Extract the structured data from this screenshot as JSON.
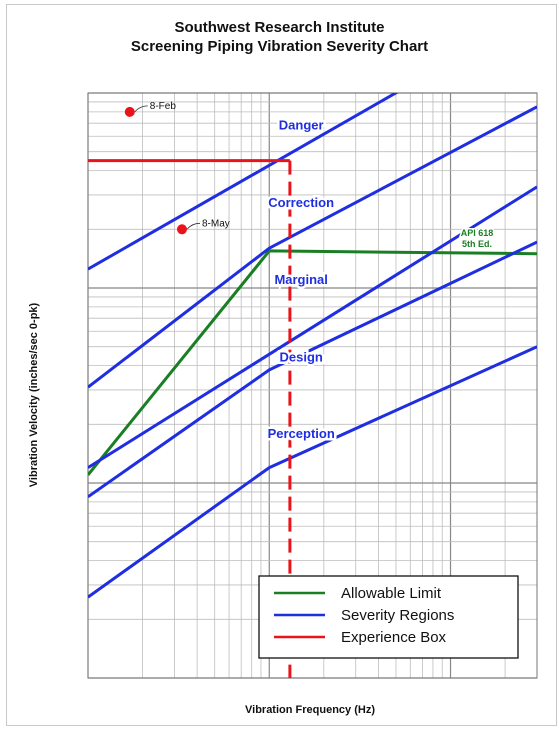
{
  "chart_data": {
    "type": "line",
    "title": "Southwest Research Institute",
    "subtitle": "Screening Piping Vibration Severity Chart",
    "xlabel": "Vibration Frequency (Hz)",
    "ylabel": "Vibration Velocity (inches/sec  0-pk)",
    "xscale": "log",
    "yscale": "log",
    "xlim": [
      1,
      300
    ],
    "ylim": [
      0.01,
      10
    ],
    "grid": true,
    "series": [
      {
        "name": "Allowable Limit",
        "color": "#1a7f24",
        "x": [
          1,
          10,
          300
        ],
        "y": [
          0.11,
          1.55,
          1.5
        ]
      },
      {
        "name": "Severity Regions",
        "color": "#1f2ee0",
        "x": [
          1,
          300
        ],
        "y": [
          1.25,
          26
        ]
      },
      {
        "name": "Severity Regions",
        "color": "#1f2ee0",
        "x": [
          1,
          10,
          300
        ],
        "y": [
          0.31,
          1.6,
          8.5
        ]
      },
      {
        "name": "Severity Regions",
        "color": "#1f2ee0",
        "x": [
          1,
          300
        ],
        "y": [
          0.12,
          3.3
        ]
      },
      {
        "name": "Severity Regions",
        "color": "#1f2ee0",
        "x": [
          1,
          10,
          300
        ],
        "y": [
          0.085,
          0.38,
          1.72
        ]
      },
      {
        "name": "Severity Regions",
        "color": "#1f2ee0",
        "x": [
          1,
          10,
          300
        ],
        "y": [
          0.026,
          0.12,
          0.5
        ]
      },
      {
        "name": "Experience Box",
        "color": "#e8141a",
        "x": [
          1,
          13
        ],
        "y": [
          4.5,
          4.5
        ]
      },
      {
        "name": "Experience Box",
        "color": "#e8141a",
        "x": [
          13,
          13
        ],
        "y": [
          4.5,
          0.01
        ],
        "dashed": true
      }
    ],
    "points": [
      {
        "label": "8-Feb",
        "x": 1.7,
        "y": 8.0,
        "color": "#e8141a"
      },
      {
        "label": "8-May",
        "x": 3.3,
        "y": 2.0,
        "color": "#e8141a"
      }
    ],
    "region_labels": [
      {
        "text": "Danger",
        "x": 15,
        "y": 6.5
      },
      {
        "text": "Correction",
        "x": 15,
        "y": 2.6
      },
      {
        "text": "Marginal",
        "x": 15,
        "y": 1.05
      },
      {
        "text": "Design",
        "x": 15,
        "y": 0.42
      },
      {
        "text": "Perception",
        "x": 15,
        "y": 0.17
      }
    ],
    "annotation": {
      "lines": [
        "API 618",
        "5th Ed."
      ],
      "color": "#1a7f24",
      "x": 140,
      "y": 1.85
    },
    "legend": {
      "placement": "bottom-right",
      "entries": [
        {
          "label": "Allowable Limit",
          "color": "#1a7f24"
        },
        {
          "label": "Severity Regions",
          "color": "#1f2ee0"
        },
        {
          "label": "Experience Box",
          "color": "#e8141a"
        }
      ]
    }
  }
}
